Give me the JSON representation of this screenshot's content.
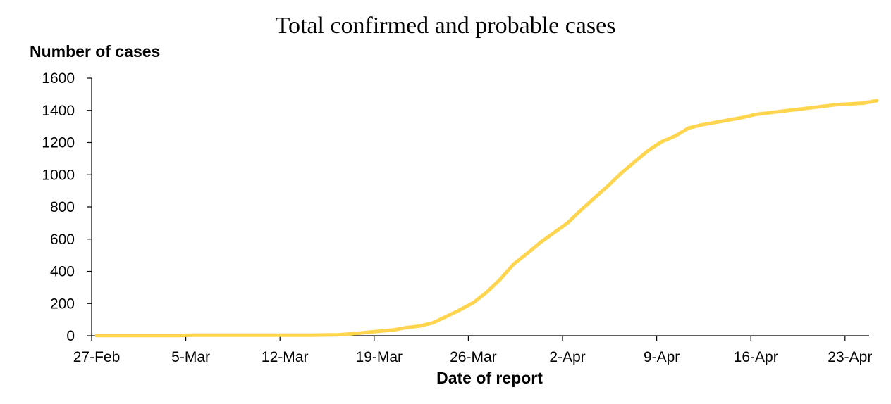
{
  "chart_data": {
    "type": "line",
    "title": "Total confirmed and probable cases",
    "ylabel": "Number of cases",
    "xlabel": "Date of report",
    "ylim": [
      0,
      1600
    ],
    "y_ticks": [
      "0",
      "200",
      "400",
      "600",
      "800",
      "1000",
      "1200",
      "1400",
      "1600"
    ],
    "x_tick_labels": [
      "27-Feb",
      "5-Mar",
      "12-Mar",
      "19-Mar",
      "26-Mar",
      "2-Apr",
      "9-Apr",
      "16-Apr",
      "23-Apr"
    ],
    "grid": false,
    "line_color": "#FFD54F",
    "series": [
      {
        "x": [
          "27-Feb",
          "28-Feb",
          "29-Feb",
          "1-Mar",
          "2-Mar",
          "3-Mar",
          "4-Mar",
          "5-Mar",
          "6-Mar",
          "7-Mar",
          "8-Mar",
          "9-Mar",
          "10-Mar",
          "11-Mar",
          "12-Mar",
          "13-Mar",
          "14-Mar",
          "15-Mar",
          "16-Mar",
          "17-Mar",
          "18-Mar",
          "19-Mar",
          "20-Mar",
          "21-Mar",
          "22-Mar",
          "23-Mar",
          "24-Mar",
          "25-Mar",
          "26-Mar",
          "27-Mar",
          "28-Mar",
          "29-Mar",
          "30-Mar",
          "31-Mar",
          "1-Apr",
          "2-Apr",
          "3-Apr",
          "4-Apr",
          "5-Apr",
          "6-Apr",
          "7-Apr",
          "8-Apr",
          "9-Apr",
          "10-Apr",
          "11-Apr",
          "12-Apr",
          "13-Apr",
          "14-Apr",
          "15-Apr",
          "16-Apr",
          "17-Apr",
          "18-Apr",
          "19-Apr",
          "20-Apr",
          "21-Apr",
          "22-Apr",
          "23-Apr",
          "24-Apr",
          "25-Apr"
        ],
        "values": [
          1,
          1,
          1,
          1,
          1,
          1,
          1,
          3,
          3,
          3,
          3,
          3,
          3,
          3,
          3,
          3,
          3,
          5,
          6,
          12,
          20,
          28,
          35,
          50,
          60,
          80,
          120,
          160,
          205,
          270,
          350,
          445,
          510,
          580,
          640,
          700,
          780,
          855,
          930,
          1010,
          1080,
          1150,
          1205,
          1240,
          1290,
          1310,
          1325,
          1340,
          1355,
          1375,
          1385,
          1395,
          1405,
          1415,
          1425,
          1435,
          1440,
          1445,
          1460
        ]
      }
    ]
  }
}
